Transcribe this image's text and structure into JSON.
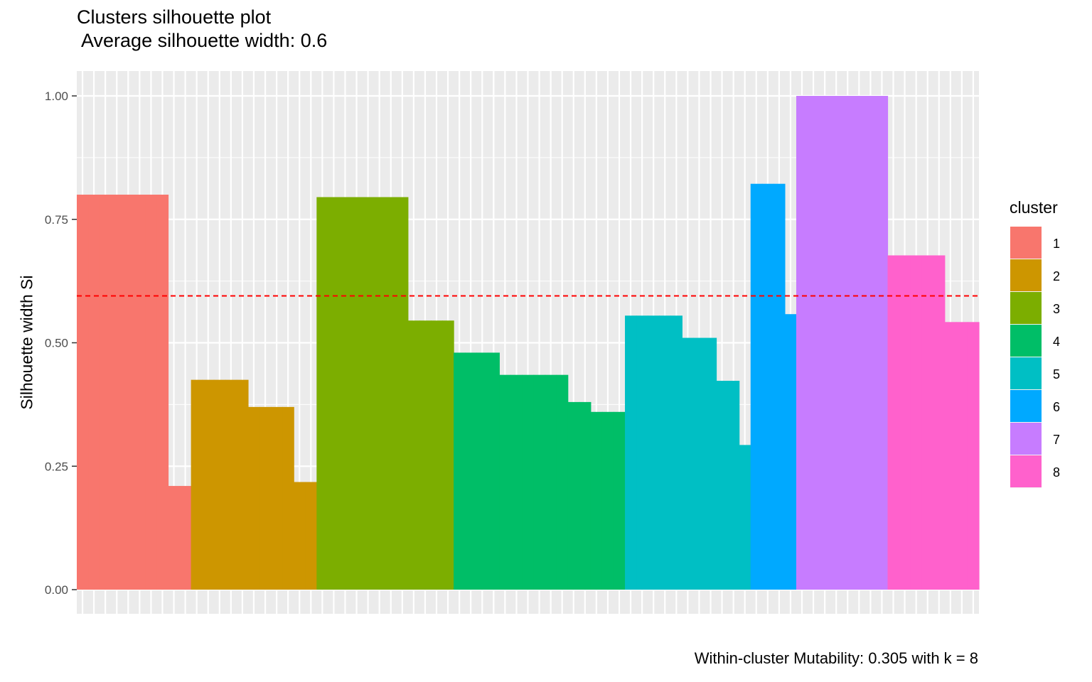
{
  "chart_data": {
    "type": "bar",
    "title": "Clusters silhouette plot",
    "subtitle": " Average silhouette width: 0.6",
    "xlabel": "",
    "ylabel": "Silhouette width Si",
    "caption": "Within-cluster Mutability: 0.305 with k = 8",
    "ylim": [
      0,
      1
    ],
    "y_ticks": [
      "0.00",
      "0.25",
      "0.50",
      "0.75",
      "1.00"
    ],
    "average_line": 0.595,
    "average_line_color": "#ff0000",
    "grid": true,
    "legend": {
      "title": "cluster",
      "placement": "right"
    },
    "clusters": [
      {
        "name": "1",
        "color": "#F8766D"
      },
      {
        "name": "2",
        "color": "#CD9600"
      },
      {
        "name": "3",
        "color": "#7CAE00"
      },
      {
        "name": "4",
        "color": "#00BE67"
      },
      {
        "name": "5",
        "color": "#00BFC4"
      },
      {
        "name": "6",
        "color": "#00A9FF"
      },
      {
        "name": "7",
        "color": "#C77CFF"
      },
      {
        "name": "8",
        "color": "#FF61CC"
      }
    ],
    "observations": [
      {
        "cluster": "1",
        "value": 0.8
      },
      {
        "cluster": "1",
        "value": 0.8
      },
      {
        "cluster": "1",
        "value": 0.8
      },
      {
        "cluster": "1",
        "value": 0.8
      },
      {
        "cluster": "1",
        "value": 0.8
      },
      {
        "cluster": "1",
        "value": 0.8
      },
      {
        "cluster": "1",
        "value": 0.8
      },
      {
        "cluster": "1",
        "value": 0.8
      },
      {
        "cluster": "1",
        "value": 0.21
      },
      {
        "cluster": "1",
        "value": 0.21
      },
      {
        "cluster": "2",
        "value": 0.425
      },
      {
        "cluster": "2",
        "value": 0.425
      },
      {
        "cluster": "2",
        "value": 0.425
      },
      {
        "cluster": "2",
        "value": 0.425
      },
      {
        "cluster": "2",
        "value": 0.425
      },
      {
        "cluster": "2",
        "value": 0.37
      },
      {
        "cluster": "2",
        "value": 0.37
      },
      {
        "cluster": "2",
        "value": 0.37
      },
      {
        "cluster": "2",
        "value": 0.37
      },
      {
        "cluster": "2",
        "value": 0.218
      },
      {
        "cluster": "2",
        "value": 0.218
      },
      {
        "cluster": "3",
        "value": 0.795
      },
      {
        "cluster": "3",
        "value": 0.795
      },
      {
        "cluster": "3",
        "value": 0.795
      },
      {
        "cluster": "3",
        "value": 0.795
      },
      {
        "cluster": "3",
        "value": 0.795
      },
      {
        "cluster": "3",
        "value": 0.795
      },
      {
        "cluster": "3",
        "value": 0.795
      },
      {
        "cluster": "3",
        "value": 0.795
      },
      {
        "cluster": "3",
        "value": 0.545
      },
      {
        "cluster": "3",
        "value": 0.545
      },
      {
        "cluster": "3",
        "value": 0.545
      },
      {
        "cluster": "3",
        "value": 0.545
      },
      {
        "cluster": "4",
        "value": 0.48
      },
      {
        "cluster": "4",
        "value": 0.48
      },
      {
        "cluster": "4",
        "value": 0.48
      },
      {
        "cluster": "4",
        "value": 0.48
      },
      {
        "cluster": "4",
        "value": 0.435
      },
      {
        "cluster": "4",
        "value": 0.435
      },
      {
        "cluster": "4",
        "value": 0.435
      },
      {
        "cluster": "4",
        "value": 0.435
      },
      {
        "cluster": "4",
        "value": 0.435
      },
      {
        "cluster": "4",
        "value": 0.435
      },
      {
        "cluster": "4",
        "value": 0.38
      },
      {
        "cluster": "4",
        "value": 0.38
      },
      {
        "cluster": "4",
        "value": 0.36
      },
      {
        "cluster": "4",
        "value": 0.36
      },
      {
        "cluster": "4",
        "value": 0.36
      },
      {
        "cluster": "5",
        "value": 0.555
      },
      {
        "cluster": "5",
        "value": 0.555
      },
      {
        "cluster": "5",
        "value": 0.555
      },
      {
        "cluster": "5",
        "value": 0.555
      },
      {
        "cluster": "5",
        "value": 0.555
      },
      {
        "cluster": "5",
        "value": 0.51
      },
      {
        "cluster": "5",
        "value": 0.51
      },
      {
        "cluster": "5",
        "value": 0.51
      },
      {
        "cluster": "5",
        "value": 0.423
      },
      {
        "cluster": "5",
        "value": 0.423
      },
      {
        "cluster": "5",
        "value": 0.293
      },
      {
        "cluster": "6",
        "value": 0.822
      },
      {
        "cluster": "6",
        "value": 0.822
      },
      {
        "cluster": "6",
        "value": 0.822
      },
      {
        "cluster": "6",
        "value": 0.558
      },
      {
        "cluster": "7",
        "value": 1.0
      },
      {
        "cluster": "7",
        "value": 1.0
      },
      {
        "cluster": "7",
        "value": 1.0
      },
      {
        "cluster": "7",
        "value": 1.0
      },
      {
        "cluster": "7",
        "value": 1.0
      },
      {
        "cluster": "7",
        "value": 1.0
      },
      {
        "cluster": "7",
        "value": 1.0
      },
      {
        "cluster": "7",
        "value": 1.0
      },
      {
        "cluster": "8",
        "value": 0.677
      },
      {
        "cluster": "8",
        "value": 0.677
      },
      {
        "cluster": "8",
        "value": 0.677
      },
      {
        "cluster": "8",
        "value": 0.677
      },
      {
        "cluster": "8",
        "value": 0.677
      },
      {
        "cluster": "8",
        "value": 0.542
      },
      {
        "cluster": "8",
        "value": 0.542
      },
      {
        "cluster": "8",
        "value": 0.542
      }
    ]
  }
}
